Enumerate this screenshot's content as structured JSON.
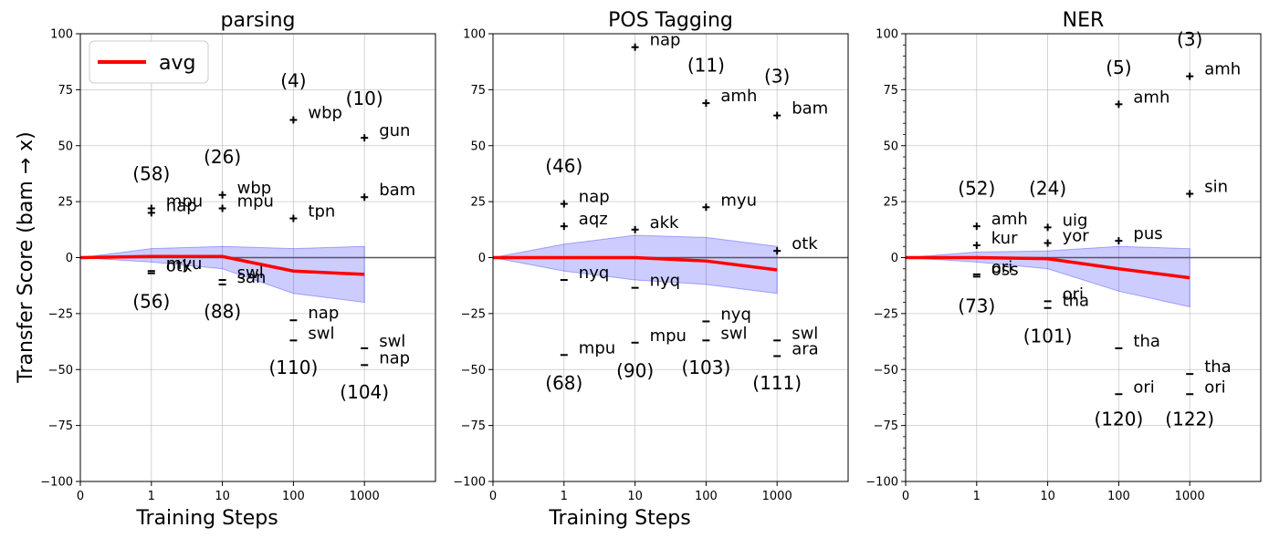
{
  "figure": {
    "ylabel": "Transfer Score (bam → x)",
    "legend_label": "avg",
    "colors": {
      "avg": "#ff0000",
      "band": "#0000ff",
      "marker": "#000000",
      "grid": "#b0b0b0",
      "zero_line": "#555555"
    }
  },
  "chart_data": [
    {
      "type": "line",
      "title": "parsing",
      "xlabel": "Training Steps",
      "ylabel": "Transfer Score (bam → x)",
      "x_ticks": [
        "0",
        "1",
        "10",
        "100",
        "1000"
      ],
      "y_ticks": [
        "100",
        "75",
        "50",
        "25",
        "0",
        "−25",
        "−50",
        "−75",
        "−100"
      ],
      "ylim": [
        -100,
        100
      ],
      "avg": {
        "x": [
          0,
          1,
          10,
          100,
          1000
        ],
        "y": [
          0,
          0.5,
          0.5,
          -6,
          -7.5
        ]
      },
      "band": {
        "x": [
          0,
          1,
          10,
          100,
          1000
        ],
        "upper": [
          0,
          4,
          5,
          4,
          5
        ],
        "lower": [
          0,
          -2,
          -5,
          -16,
          -20
        ]
      },
      "points": [
        {
          "x": 1,
          "y": 22,
          "label": "mpu"
        },
        {
          "x": 1,
          "y": 20,
          "label": "nap"
        },
        {
          "x": 1,
          "y": -6,
          "label": "myu"
        },
        {
          "x": 1,
          "y": -7,
          "label": "otk"
        },
        {
          "x": 10,
          "y": 28,
          "label": "wbp"
        },
        {
          "x": 10,
          "y": 22,
          "label": "mpu"
        },
        {
          "x": 10,
          "y": -10,
          "label": "swl"
        },
        {
          "x": 10,
          "y": -12,
          "label": "san"
        },
        {
          "x": 100,
          "y": 61.5,
          "label": "wbp"
        },
        {
          "x": 100,
          "y": 17.5,
          "label": "tpn"
        },
        {
          "x": 100,
          "y": -28,
          "label": "nap"
        },
        {
          "x": 100,
          "y": -37,
          "label": "swl"
        },
        {
          "x": 1000,
          "y": 53.5,
          "label": "gun"
        },
        {
          "x": 1000,
          "y": 27,
          "label": "bam"
        },
        {
          "x": 1000,
          "y": -40.5,
          "label": "swl"
        },
        {
          "x": 1000,
          "y": -48,
          "label": "nap"
        }
      ],
      "counts": [
        {
          "x": 1,
          "y": 37.5,
          "text": "(58)"
        },
        {
          "x": 1,
          "y": -19.5,
          "text": "(56)"
        },
        {
          "x": 10,
          "y": 45,
          "text": "(26)"
        },
        {
          "x": 10,
          "y": -24,
          "text": "(88)"
        },
        {
          "x": 100,
          "y": 79,
          "text": "(4)"
        },
        {
          "x": 100,
          "y": -49,
          "text": "(110)"
        },
        {
          "x": 1000,
          "y": 71,
          "text": "(10)"
        },
        {
          "x": 1000,
          "y": -60,
          "text": "(104)"
        }
      ]
    },
    {
      "type": "line",
      "title": "POS Tagging",
      "xlabel": "Training Steps",
      "x_ticks": [
        "0",
        "1",
        "10",
        "100",
        "1000"
      ],
      "y_ticks": [
        "100",
        "75",
        "50",
        "25",
        "0",
        "−25",
        "−50",
        "−75",
        "−100"
      ],
      "ylim": [
        -100,
        100
      ],
      "avg": {
        "x": [
          0,
          1,
          10,
          100,
          1000
        ],
        "y": [
          0,
          0,
          0,
          -1.5,
          -5.5
        ]
      },
      "band": {
        "x": [
          0,
          1,
          10,
          100,
          1000
        ],
        "upper": [
          0,
          6,
          10,
          9,
          5
        ],
        "lower": [
          0,
          -6,
          -10,
          -12,
          -16
        ]
      },
      "points": [
        {
          "x": 1,
          "y": 24,
          "label": "nap"
        },
        {
          "x": 1,
          "y": 14,
          "label": "aqz"
        },
        {
          "x": 1,
          "y": -10,
          "label": "nyq"
        },
        {
          "x": 1,
          "y": -43.5,
          "label": "mpu"
        },
        {
          "x": 10,
          "y": 94,
          "label": "nap"
        },
        {
          "x": 10,
          "y": 12.5,
          "label": "akk"
        },
        {
          "x": 10,
          "y": -13.5,
          "label": "nyq"
        },
        {
          "x": 10,
          "y": -38,
          "label": "mpu"
        },
        {
          "x": 100,
          "y": 69,
          "label": "amh"
        },
        {
          "x": 100,
          "y": 22.5,
          "label": "myu"
        },
        {
          "x": 100,
          "y": -28.5,
          "label": "nyq"
        },
        {
          "x": 100,
          "y": -37,
          "label": "swl"
        },
        {
          "x": 1000,
          "y": 63.5,
          "label": "bam"
        },
        {
          "x": 1000,
          "y": 3,
          "label": "otk"
        },
        {
          "x": 1000,
          "y": -37,
          "label": "swl"
        },
        {
          "x": 1000,
          "y": -44,
          "label": "ara"
        }
      ],
      "counts": [
        {
          "x": 1,
          "y": 41,
          "text": "(46)"
        },
        {
          "x": 1,
          "y": -56,
          "text": "(68)"
        },
        {
          "x": 100,
          "y": 86,
          "text": "(11)"
        },
        {
          "x": 10,
          "y": -50.5,
          "text": "(90)"
        },
        {
          "x": 1000,
          "y": 81,
          "text": "(3)"
        },
        {
          "x": 100,
          "y": -49,
          "text": "(103)"
        },
        {
          "x": 1000,
          "y": -56,
          "text": "(111)"
        }
      ]
    },
    {
      "type": "line",
      "title": "NER",
      "xlabel": "",
      "x_ticks": [
        "0",
        "1",
        "10",
        "100",
        "1000"
      ],
      "y_ticks": [
        "100",
        "75",
        "50",
        "25",
        "0",
        "−25",
        "−50",
        "−75",
        "−100"
      ],
      "ylim": [
        -100,
        100
      ],
      "avg": {
        "x": [
          0,
          1,
          10,
          100,
          1000
        ],
        "y": [
          0,
          0,
          -0.5,
          -5,
          -9
        ]
      },
      "band": {
        "x": [
          0,
          1,
          10,
          100,
          1000
        ],
        "upper": [
          0,
          2.5,
          3,
          5,
          4
        ],
        "lower": [
          0,
          -2,
          -5,
          -15,
          -22
        ]
      },
      "points": [
        {
          "x": 1,
          "y": 14,
          "label": "amh"
        },
        {
          "x": 1,
          "y": 5.5,
          "label": "kur"
        },
        {
          "x": 1,
          "y": -7.5,
          "label": "ori"
        },
        {
          "x": 1,
          "y": -8.5,
          "label": "oss"
        },
        {
          "x": 10,
          "y": 13.5,
          "label": "uig"
        },
        {
          "x": 10,
          "y": 6.5,
          "label": "yor"
        },
        {
          "x": 10,
          "y": -19.5,
          "label": "ori"
        },
        {
          "x": 10,
          "y": -22.5,
          "label": "tha"
        },
        {
          "x": 100,
          "y": 68.5,
          "label": "amh"
        },
        {
          "x": 100,
          "y": 7.5,
          "label": "pus"
        },
        {
          "x": 100,
          "y": -40.5,
          "label": "tha"
        },
        {
          "x": 100,
          "y": -61,
          "label": "ori"
        },
        {
          "x": 1000,
          "y": 81,
          "label": "amh"
        },
        {
          "x": 1000,
          "y": 28.5,
          "label": "sin"
        },
        {
          "x": 1000,
          "y": -52,
          "label": "tha"
        },
        {
          "x": 1000,
          "y": -61,
          "label": "ori"
        }
      ],
      "counts": [
        {
          "x": 1,
          "y": 31,
          "text": "(52)"
        },
        {
          "x": 1,
          "y": -21.5,
          "text": "(73)"
        },
        {
          "x": 10,
          "y": 31,
          "text": "(24)"
        },
        {
          "x": 10,
          "y": -35,
          "text": "(101)"
        },
        {
          "x": 100,
          "y": 85,
          "text": "(5)"
        },
        {
          "x": 100,
          "y": -72,
          "text": "(120)"
        },
        {
          "x": 1000,
          "y": 97.5,
          "text": "(3)"
        },
        {
          "x": 1000,
          "y": -72,
          "text": "(122)"
        }
      ]
    }
  ]
}
